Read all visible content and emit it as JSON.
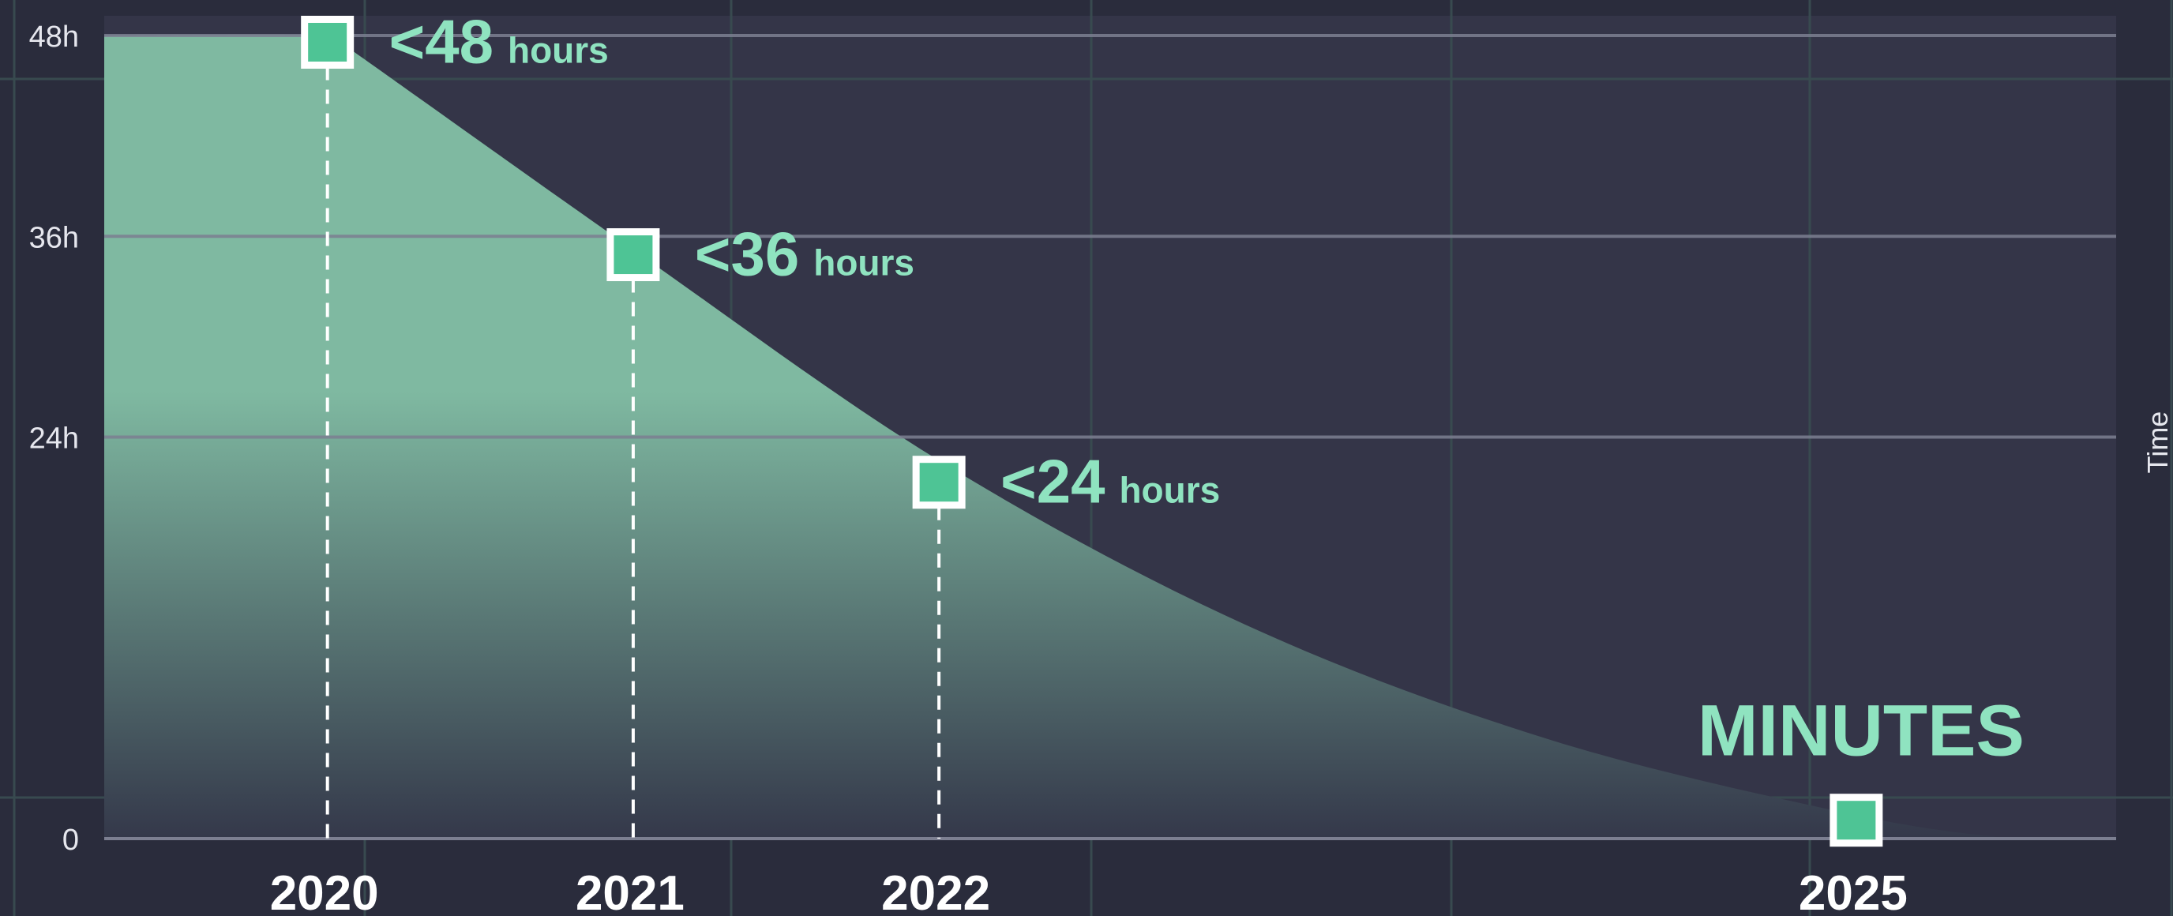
{
  "chart_data": {
    "type": "area",
    "xlabel": "",
    "ylabel": "Time",
    "y_ticks": [
      {
        "value": 0,
        "label": "0"
      },
      {
        "value": 24,
        "label": "24h"
      },
      {
        "value": 36,
        "label": "36h"
      },
      {
        "value": 48,
        "label": "48h"
      }
    ],
    "x_ticks": [
      {
        "value": 2020,
        "label": "2020"
      },
      {
        "value": 2021,
        "label": "2021"
      },
      {
        "value": 2022,
        "label": "2022"
      },
      {
        "value": 2025,
        "label": "2025"
      }
    ],
    "xlim": [
      2019.27,
      2025.85
    ],
    "ylim": [
      0,
      48
    ],
    "curve": {
      "x": [
        2019.27,
        2020.0,
        2020.05,
        2021.0,
        2022.0,
        2023.0,
        2024.0,
        2025.0,
        2025.5
      ],
      "y": [
        48,
        48,
        47.5,
        35.2,
        22.6,
        12.8,
        5.9,
        1.4,
        0
      ]
    },
    "points": [
      {
        "x": 2020,
        "y": 47.6,
        "label": "<48",
        "unit": "hours"
      },
      {
        "x": 2021,
        "y": 34.9,
        "label": "<36",
        "unit": "hours"
      },
      {
        "x": 2022,
        "y": 21.3,
        "label": "<24",
        "unit": "hours"
      },
      {
        "x": 2025,
        "y": 1.1,
        "label": "MINUTES",
        "unit": ""
      }
    ],
    "grid": true,
    "legend": "none"
  },
  "colors": {
    "background": "#2a2c3c",
    "plot_background": "#343548",
    "area_top": "#7fb9a1",
    "area_bottom": "#34384a",
    "marker_fill": "#4ec495",
    "marker_border": "#ffffff",
    "annotation": "#8fe3c0",
    "gridline_major": "#7c7f91",
    "gridline_minor": "#384a4f"
  }
}
